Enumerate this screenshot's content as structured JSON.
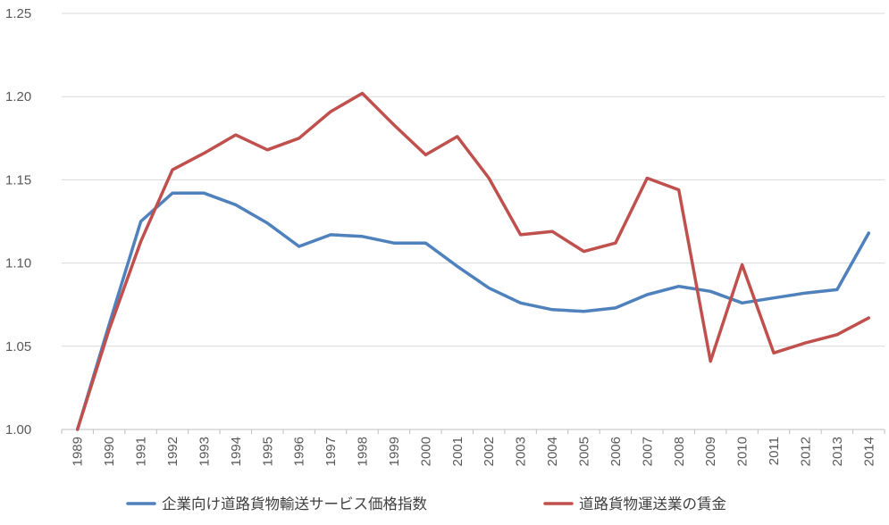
{
  "chart_data": {
    "type": "line",
    "categories": [
      "1989",
      "1990",
      "1991",
      "1992",
      "1993",
      "1994",
      "1995",
      "1996",
      "1997",
      "1998",
      "1999",
      "2000",
      "2001",
      "2002",
      "2003",
      "2004",
      "2005",
      "2006",
      "2007",
      "2008",
      "2009",
      "2010",
      "2011",
      "2012",
      "2013",
      "2014"
    ],
    "series": [
      {
        "name": "企業向け道路貨物輸送サービス価格指数",
        "color": "#4F81BD",
        "values": [
          1.0,
          1.063,
          1.125,
          1.142,
          1.142,
          1.135,
          1.124,
          1.11,
          1.117,
          1.116,
          1.112,
          1.112,
          1.098,
          1.085,
          1.076,
          1.072,
          1.071,
          1.073,
          1.081,
          1.086,
          1.083,
          1.076,
          1.079,
          1.082,
          1.084,
          1.118
        ]
      },
      {
        "name": "道路貨物運送業の賃金",
        "color": "#C0504D",
        "values": [
          1.0,
          1.06,
          1.113,
          1.156,
          1.166,
          1.177,
          1.168,
          1.175,
          1.191,
          1.202,
          1.183,
          1.165,
          1.176,
          1.151,
          1.117,
          1.119,
          1.107,
          1.112,
          1.151,
          1.144,
          1.041,
          1.099,
          1.046,
          1.052,
          1.057,
          1.067
        ]
      }
    ],
    "y_ticks": [
      "1.00",
      "1.05",
      "1.10",
      "1.15",
      "1.20",
      "1.25"
    ],
    "ylim": [
      1.0,
      1.25
    ],
    "grid": true,
    "legend_position": "bottom",
    "title": "",
    "xlabel": "",
    "ylabel": ""
  }
}
